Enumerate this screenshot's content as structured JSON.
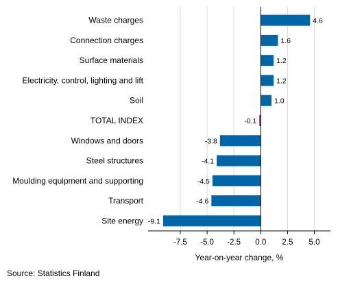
{
  "chart_data": {
    "type": "bar",
    "orientation": "horizontal",
    "categories": [
      "Waste charges",
      "Connection charges",
      "Surface materials",
      "Electricity, control, lighting and lift",
      "Soil",
      "TOTAL INDEX",
      "Windows and doors",
      "Steel structures",
      "Moulding equipment and supporting",
      "Transport",
      "Site energy"
    ],
    "values": [
      4.6,
      1.6,
      1.2,
      1.2,
      1.0,
      -0.1,
      -3.8,
      -4.1,
      -4.5,
      -4.6,
      -9.1
    ],
    "value_labels": [
      "4.6",
      "1.6",
      "1.2",
      "1.2",
      "1.0",
      "-0.1",
      "-3.8",
      "-4.1",
      "-4.5",
      "-4.6",
      "-9.1"
    ],
    "highlight_category": "TOTAL INDEX",
    "colors": {
      "bar": "#0066a8",
      "highlight": "#8a1b61",
      "gridline": "#d9d9d9",
      "axis": "#000000"
    },
    "xticks": [
      -7.5,
      -5.0,
      -2.5,
      0.0,
      2.5,
      5.0
    ],
    "xtick_labels": [
      "-7.5",
      "-5.0",
      "-2.5",
      "0.0",
      "2.5",
      "5.0"
    ],
    "xlim": [
      -10.5,
      6.5
    ],
    "xlabel": "Year-on-year change, %",
    "grid": "vertical",
    "legend": "none"
  },
  "footer": {
    "source": "Source: Statistics Finland"
  }
}
